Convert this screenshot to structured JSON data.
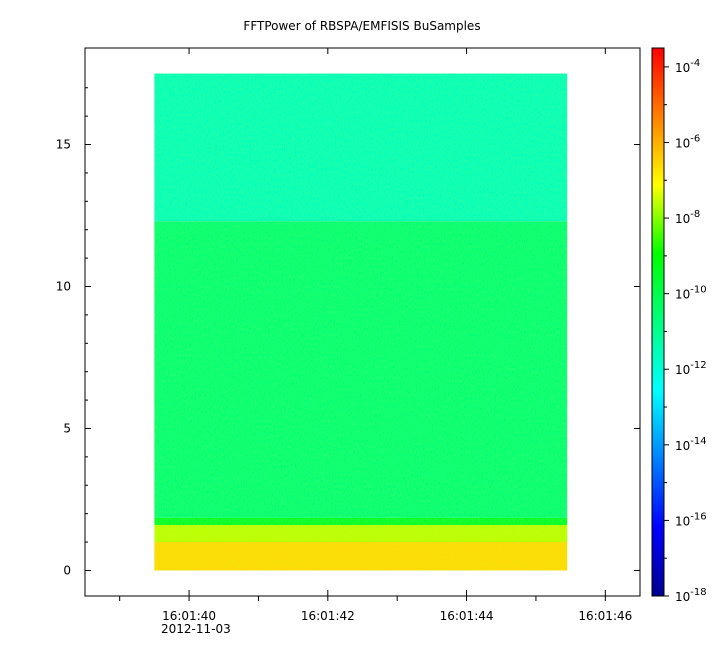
{
  "chart_data": {
    "type": "heatmap",
    "title": "FFTPower of RBSPA/EMFISIS  BuSamples",
    "xlabel": "",
    "ylabel": "",
    "x_ticks": [
      "16:01:40",
      "16:01:42",
      "16:01:44",
      "16:01:46"
    ],
    "x_tick_sublabel": "2012-11-03",
    "x_range_seconds": [
      38.5,
      46.5
    ],
    "x_data_range_seconds": [
      39.5,
      45.45
    ],
    "y_ticks": [
      "0",
      "5",
      "10",
      "15"
    ],
    "y_range": [
      -0.9,
      18.4
    ],
    "y_data_range": [
      0,
      17.5
    ],
    "colorbar": {
      "scale": "log",
      "range_exponent": [
        -18,
        -3.5
      ],
      "tick_exponents": [
        -4,
        -6,
        -8,
        -10,
        -12,
        -14,
        -16,
        -18
      ],
      "tick_labels": [
        "10-4",
        "10-6",
        "10-8",
        "10-10",
        "10-12",
        "10-14",
        "10-16",
        "10-18"
      ]
    },
    "bands": [
      {
        "y_from": 0,
        "y_to": 1.0,
        "log10_power": -6.6
      },
      {
        "y_from": 1.0,
        "y_to": 1.6,
        "log10_power": -7.6
      },
      {
        "y_from": 1.6,
        "y_to": 1.85,
        "log10_power": -9.5
      },
      {
        "y_from": 1.85,
        "y_to": 12.3,
        "log10_power": -10.6
      },
      {
        "y_from": 12.3,
        "y_to": 17.5,
        "log10_power": -11.6
      }
    ],
    "grid": false
  }
}
